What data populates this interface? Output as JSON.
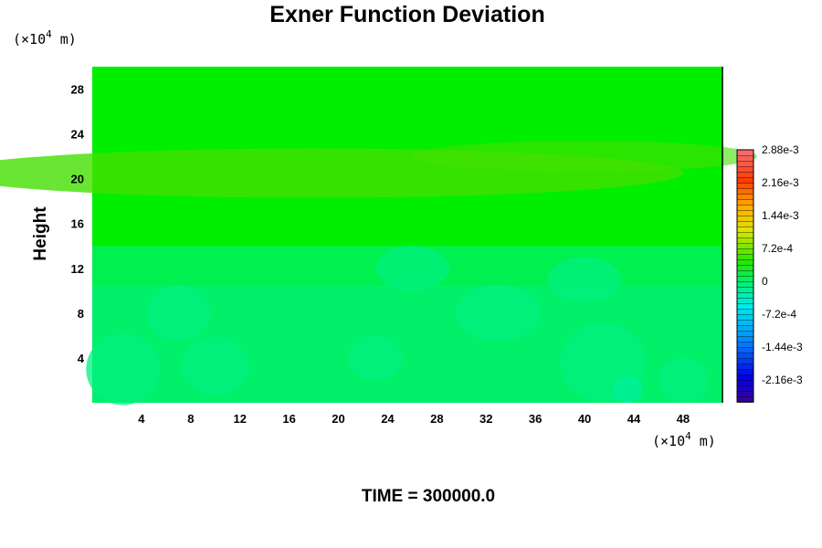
{
  "chart_data": {
    "type": "heatmap",
    "title": "Exner Function Deviation",
    "ylabel": "Height",
    "xlabel": "",
    "x_unit": {
      "prefix": "(×10",
      "exp": "4",
      "suffix": " m)"
    },
    "y_unit": {
      "prefix": "(×10",
      "exp": "4",
      "suffix": " m)"
    },
    "xlim": [
      0,
      51.2
    ],
    "ylim": [
      0,
      30
    ],
    "x_ticks": [
      4,
      8,
      12,
      16,
      20,
      24,
      28,
      32,
      36,
      40,
      44,
      48
    ],
    "y_ticks": [
      4,
      8,
      12,
      16,
      20,
      24,
      28
    ],
    "colorbar": {
      "min": -0.00264,
      "max": 0.00288,
      "labels": [
        {
          "value": 0.00288,
          "text": "2.88e-3"
        },
        {
          "value": 0.00216,
          "text": "2.16e-3"
        },
        {
          "value": 0.00144,
          "text": "1.44e-3"
        },
        {
          "value": 0.00072,
          "text": "7.2e-4"
        },
        {
          "value": 0,
          "text": "0"
        },
        {
          "value": -0.00072,
          "text": "-7.2e-4"
        },
        {
          "value": -0.00144,
          "text": "-1.44e-3"
        },
        {
          "value": -0.00216,
          "text": "-2.16e-3"
        }
      ],
      "levels": 46
    },
    "field_summary": "Near-uniform field close to 0 (green); slightly positive band near height 19-23, slightly negative patches below height 14",
    "time_label": "TIME = 300000.0"
  },
  "colors": {
    "background": "#ffffff",
    "field_base": "#00ee00",
    "band_positive": "#44e000",
    "lower_layer": "#00f050",
    "patch_negative": "#00f080",
    "patch_strong_negative": "#00f0a0"
  }
}
